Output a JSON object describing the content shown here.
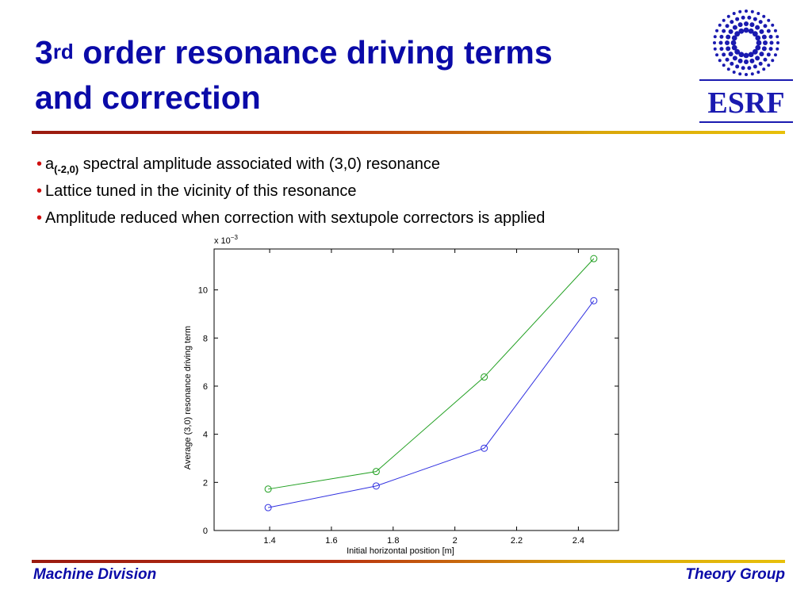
{
  "slide": {
    "title_line1_prefix": "3",
    "title_line1_sup": "rd",
    "title_line1_rest": " order resonance driving terms",
    "title_line2": "and correction",
    "logo_text": "ESRF"
  },
  "bullets": [
    {
      "base": "a",
      "sub": "(-2,0)",
      "text": " spectral amplitude associated with (3,0) resonance"
    },
    {
      "text": "Lattice tuned in the vicinity of this resonance"
    },
    {
      "text": "Amplitude reduced when correction with sextupole correctors is applied"
    }
  ],
  "footer": {
    "left": "Machine Division",
    "right": "Theory Group"
  },
  "colors": {
    "title": "#0a0aa8",
    "bullet": "#d01010",
    "series_green": "#22a022",
    "series_blue": "#3030e0"
  },
  "chart_data": {
    "type": "line",
    "xlabel": "Initial horizontal position [m]",
    "ylabel": "Average (3,0) resonance driving term",
    "y_multiplier_label": "x 10",
    "y_multiplier_exp": "−3",
    "xlim": [
      1.22,
      2.53
    ],
    "ylim": [
      0,
      11.7
    ],
    "xticks": [
      1.4,
      1.6,
      1.8,
      2,
      2.2,
      2.4
    ],
    "xtick_labels": [
      "1.4",
      "1.6",
      "1.8",
      "2",
      "2.2",
      "2.4"
    ],
    "yticks": [
      0,
      2,
      4,
      6,
      8,
      10
    ],
    "ytick_labels": [
      "0",
      "2",
      "4",
      "6",
      "8",
      "10"
    ],
    "grid": false,
    "legend": "none",
    "markers": "circle",
    "series": [
      {
        "color": "#22a022",
        "x": [
          1.395,
          1.745,
          2.095,
          2.45
        ],
        "y": [
          1.72,
          2.45,
          6.38,
          11.3
        ]
      },
      {
        "color": "#3030e0",
        "x": [
          1.395,
          1.745,
          2.095,
          2.45
        ],
        "y": [
          0.95,
          1.85,
          3.42,
          9.55
        ]
      }
    ]
  }
}
